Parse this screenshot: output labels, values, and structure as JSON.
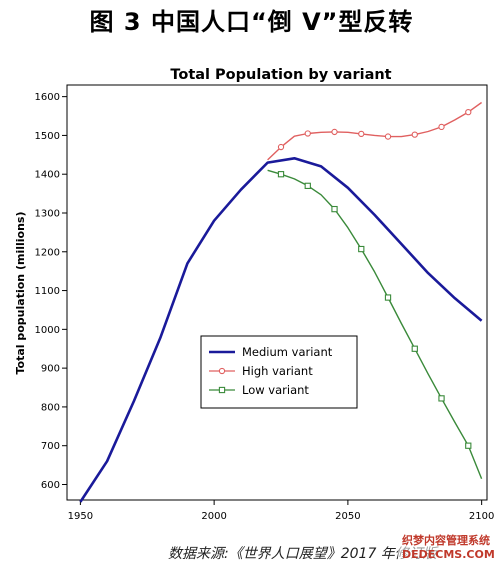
{
  "figure_title": "图 3 中国人口“倒 V”型反转",
  "source_note": "数据来源:《世界人口展望》2017 年修订版",
  "watermark": {
    "line1": "织梦内容管理系统",
    "line2": "DEDECMS.COM"
  },
  "colors": {
    "medium": "#1a1a9a",
    "high": "#e06060",
    "low": "#3a8a3a",
    "frame": "#000000"
  },
  "chart_data": {
    "type": "line",
    "title": "Total Population by variant",
    "xlabel": "",
    "ylabel": "Total population (millions)",
    "xlim": [
      1945,
      2102
    ],
    "ylim": [
      560,
      1630
    ],
    "xticks": [
      1950,
      2000,
      2050,
      2100
    ],
    "yticks": [
      600,
      700,
      800,
      900,
      1000,
      1100,
      1200,
      1300,
      1400,
      1500,
      1600
    ],
    "grid": false,
    "legend_position": "center-bottom",
    "series": [
      {
        "name": "Medium variant",
        "color": "#1a1a9a",
        "marker": "none",
        "x": [
          1950,
          1960,
          1970,
          1980,
          1990,
          2000,
          2010,
          2020,
          2030,
          2040,
          2050,
          2060,
          2070,
          2080,
          2090,
          2100
        ],
        "y": [
          555,
          660,
          815,
          980,
          1170,
          1280,
          1360,
          1430,
          1441,
          1420,
          1365,
          1295,
          1220,
          1145,
          1080,
          1022
        ]
      },
      {
        "name": "High variant",
        "color": "#e06060",
        "marker": "circle",
        "x": [
          2020,
          2025,
          2030,
          2035,
          2040,
          2045,
          2050,
          2055,
          2060,
          2065,
          2070,
          2075,
          2080,
          2085,
          2090,
          2095,
          2100
        ],
        "y": [
          1437,
          1470,
          1498,
          1505,
          1508,
          1509,
          1508,
          1504,
          1500,
          1497,
          1497,
          1502,
          1510,
          1522,
          1540,
          1560,
          1585
        ]
      },
      {
        "name": "Low variant",
        "color": "#3a8a3a",
        "marker": "square",
        "x": [
          2020,
          2025,
          2030,
          2035,
          2040,
          2045,
          2050,
          2055,
          2060,
          2065,
          2070,
          2075,
          2080,
          2085,
          2090,
          2095,
          2100
        ],
        "y": [
          1410,
          1400,
          1388,
          1370,
          1347,
          1310,
          1262,
          1207,
          1148,
          1082,
          1015,
          950,
          885,
          822,
          760,
          700,
          615
        ]
      }
    ]
  }
}
